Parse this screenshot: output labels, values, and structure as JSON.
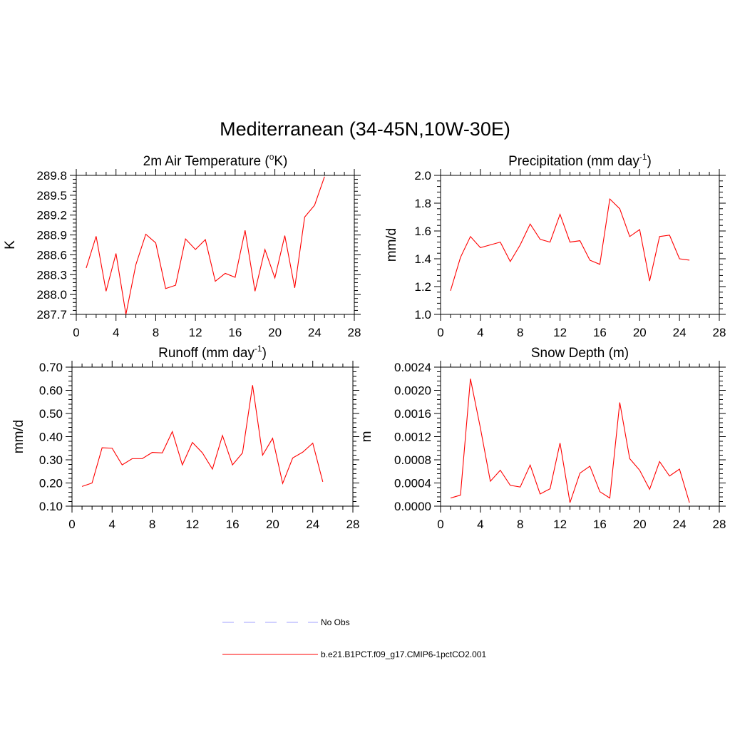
{
  "title": "Mediterranean (34-45N,10W-30E)",
  "colors": {
    "model_line": "#ff0000",
    "obs_line": "#a0a0ff",
    "axis": "#000000"
  },
  "legend": [
    {
      "label": "No Obs",
      "style": "dashed",
      "color": "#a0a0ff"
    },
    {
      "label": "b.e21.B1PCT.f09_g17.CMIP6-1pctCO2.001",
      "style": "solid",
      "color": "#ff0000"
    }
  ],
  "chart_data": [
    {
      "type": "line",
      "title": {
        "text": "2m Air Temperature (",
        "sup": "o",
        "tail": "K)"
      },
      "xlabel": "",
      "ylabel": "K",
      "xlim": [
        0,
        28
      ],
      "ylim": [
        287.7,
        289.8
      ],
      "xticks": [
        0,
        4,
        8,
        12,
        16,
        20,
        24,
        28
      ],
      "yticks": [
        "287.7",
        "288.0",
        "288.3",
        "288.6",
        "288.9",
        "289.2",
        "289.5",
        "289.8"
      ],
      "grid": false,
      "series": [
        {
          "color": "#ff0000",
          "x": [
            1,
            2,
            3,
            4,
            5,
            6,
            7,
            8,
            9,
            10,
            11,
            12,
            13,
            14,
            15,
            16,
            17,
            18,
            19,
            20,
            21,
            22,
            23,
            24,
            25
          ],
          "y": [
            288.4,
            288.88,
            288.05,
            288.62,
            287.7,
            288.45,
            288.91,
            288.78,
            288.09,
            288.14,
            288.84,
            288.68,
            288.83,
            288.2,
            288.32,
            288.26,
            288.97,
            288.05,
            288.68,
            288.25,
            288.89,
            288.1,
            289.17,
            289.35,
            289.78
          ]
        }
      ]
    },
    {
      "type": "line",
      "title": {
        "text": "Precipitation (mm day",
        "sup": "-1",
        "tail": ")"
      },
      "xlabel": "",
      "ylabel": "mm/d",
      "xlim": [
        0,
        28
      ],
      "ylim": [
        1.0,
        2.0
      ],
      "xticks": [
        0,
        4,
        8,
        12,
        16,
        20,
        24,
        28
      ],
      "yticks": [
        "1.0",
        "1.2",
        "1.4",
        "1.6",
        "1.8",
        "2.0"
      ],
      "grid": false,
      "series": [
        {
          "color": "#ff0000",
          "x": [
            1,
            2,
            3,
            4,
            5,
            6,
            7,
            8,
            9,
            10,
            11,
            12,
            13,
            14,
            15,
            16,
            17,
            18,
            19,
            20,
            21,
            22,
            23,
            24,
            25
          ],
          "y": [
            1.17,
            1.41,
            1.56,
            1.48,
            1.5,
            1.52,
            1.38,
            1.5,
            1.65,
            1.54,
            1.52,
            1.72,
            1.52,
            1.53,
            1.39,
            1.36,
            1.83,
            1.76,
            1.56,
            1.61,
            1.24,
            1.56,
            1.57,
            1.4,
            1.39
          ]
        }
      ]
    },
    {
      "type": "line",
      "title": {
        "text": "Runoff (mm day",
        "sup": "-1",
        "tail": ")"
      },
      "xlabel": "",
      "ylabel": "mm/d",
      "xlim": [
        0,
        28
      ],
      "ylim": [
        0.1,
        0.7
      ],
      "xticks": [
        0,
        4,
        8,
        12,
        16,
        20,
        24,
        28
      ],
      "yticks": [
        "0.10",
        "0.20",
        "0.30",
        "0.40",
        "0.50",
        "0.60",
        "0.70"
      ],
      "grid": false,
      "series": [
        {
          "color": "#ff0000",
          "x": [
            1,
            2,
            3,
            4,
            5,
            6,
            7,
            8,
            9,
            10,
            11,
            12,
            13,
            14,
            15,
            16,
            17,
            18,
            19,
            20,
            21,
            22,
            23,
            24,
            25
          ],
          "y": [
            0.185,
            0.2,
            0.352,
            0.35,
            0.278,
            0.305,
            0.305,
            0.332,
            0.33,
            0.422,
            0.278,
            0.375,
            0.33,
            0.26,
            0.405,
            0.278,
            0.33,
            0.622,
            0.32,
            0.393,
            0.198,
            0.308,
            0.333,
            0.372,
            0.205
          ]
        }
      ]
    },
    {
      "type": "line",
      "title": {
        "text": "Snow Depth (m)",
        "sup": "",
        "tail": ""
      },
      "xlabel": "",
      "ylabel": "m",
      "xlim": [
        0,
        28
      ],
      "ylim": [
        0.0,
        0.0024
      ],
      "xticks": [
        0,
        4,
        8,
        12,
        16,
        20,
        24,
        28
      ],
      "yticks": [
        "0.0000",
        "0.0004",
        "0.0008",
        "0.0012",
        "0.0016",
        "0.0020",
        "0.0024"
      ],
      "grid": false,
      "series": [
        {
          "color": "#ff0000",
          "x": [
            1,
            2,
            3,
            4,
            5,
            6,
            7,
            8,
            9,
            10,
            11,
            12,
            13,
            14,
            15,
            16,
            17,
            18,
            19,
            20,
            21,
            22,
            23,
            24,
            25
          ],
          "y": [
            0.00014,
            0.00019,
            0.0022,
            0.00135,
            0.00043,
            0.00062,
            0.00036,
            0.00033,
            0.00071,
            0.00021,
            0.0003,
            0.00109,
            6e-05,
            0.00057,
            0.00069,
            0.00025,
            0.00014,
            0.00179,
            0.00082,
            0.00062,
            0.00029,
            0.00077,
            0.00052,
            0.00064,
            6e-05
          ]
        }
      ]
    }
  ]
}
